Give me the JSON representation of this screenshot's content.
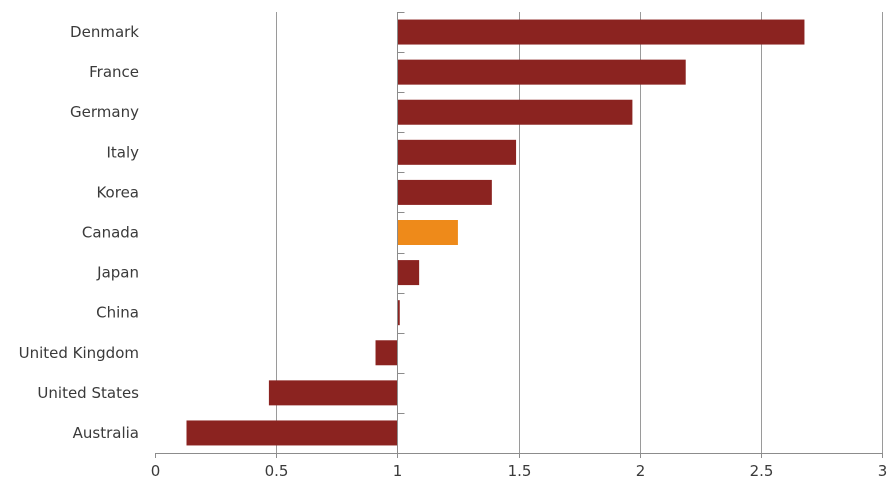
{
  "chart_data": {
    "type": "bar",
    "orientation": "horizontal",
    "title": "",
    "xlabel": "",
    "ylabel": "",
    "baseline": 1,
    "xlim": [
      0,
      3
    ],
    "xticks": [
      0,
      0.5,
      1,
      1.5,
      2,
      2.5,
      3
    ],
    "xtick_labels": [
      "0",
      "0.5",
      "1",
      "1.5",
      "2",
      "2.5",
      "3"
    ],
    "grid": true,
    "categories": [
      "Denmark",
      "France",
      "Germany",
      "Italy",
      "Korea",
      "Canada",
      "Japan",
      "China",
      "United Kingdom",
      "United States",
      "Australia"
    ],
    "values": [
      2.68,
      2.19,
      1.97,
      1.49,
      1.39,
      1.25,
      1.09,
      1.01,
      0.91,
      0.47,
      0.13
    ],
    "highlight": "Canada",
    "colors": {
      "bar": "#8b2320",
      "highlight": "#ee8a1a"
    }
  }
}
